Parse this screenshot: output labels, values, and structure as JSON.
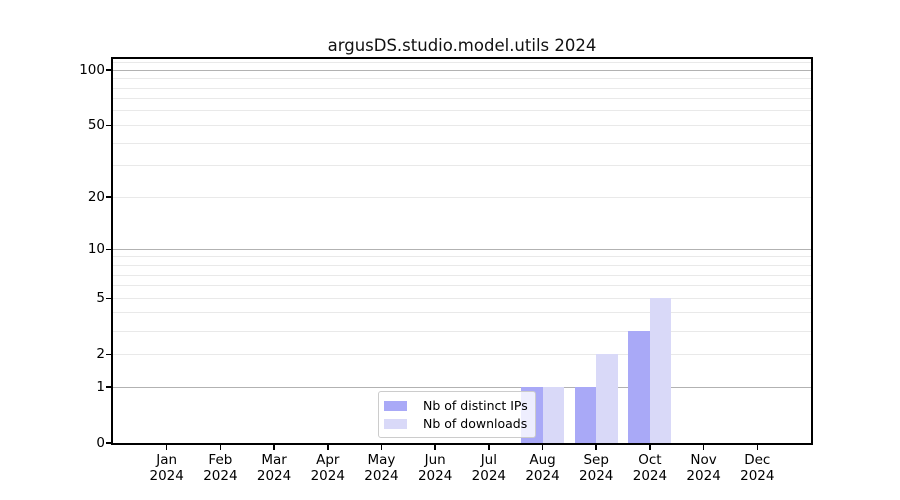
{
  "chart_data": {
    "type": "bar",
    "title": "argusDS.studio.model.utils 2024",
    "categories": [
      "Jan 2024",
      "Feb 2024",
      "Mar 2024",
      "Apr 2024",
      "May 2024",
      "Jun 2024",
      "Jul 2024",
      "Aug 2024",
      "Sep 2024",
      "Oct 2024",
      "Nov 2024",
      "Dec 2024"
    ],
    "series": [
      {
        "name": "Nb of distinct IPs",
        "color": "#a9a9f7",
        "values": [
          0,
          0,
          0,
          0,
          0,
          0,
          0,
          1,
          1,
          3,
          0,
          0
        ]
      },
      {
        "name": "Nb of downloads",
        "color": "#d9d9f8",
        "values": [
          0,
          0,
          0,
          0,
          0,
          0,
          0,
          1,
          2,
          5,
          0,
          0
        ]
      }
    ],
    "yscale": "log1p",
    "ylim": [
      0,
      115
    ],
    "yticks": [
      0,
      1,
      2,
      5,
      10,
      20,
      50,
      100
    ],
    "grid": {
      "major_lines": [
        1,
        10,
        100
      ],
      "minor_lines": [
        2,
        3,
        4,
        5,
        6,
        7,
        8,
        9,
        20,
        30,
        40,
        50,
        60,
        70,
        80,
        90,
        110
      ],
      "major_color": "#b2b2b2",
      "minor_color": "#e9e9e9"
    },
    "legend_position": "lower-center",
    "xlabel": "",
    "ylabel": ""
  }
}
